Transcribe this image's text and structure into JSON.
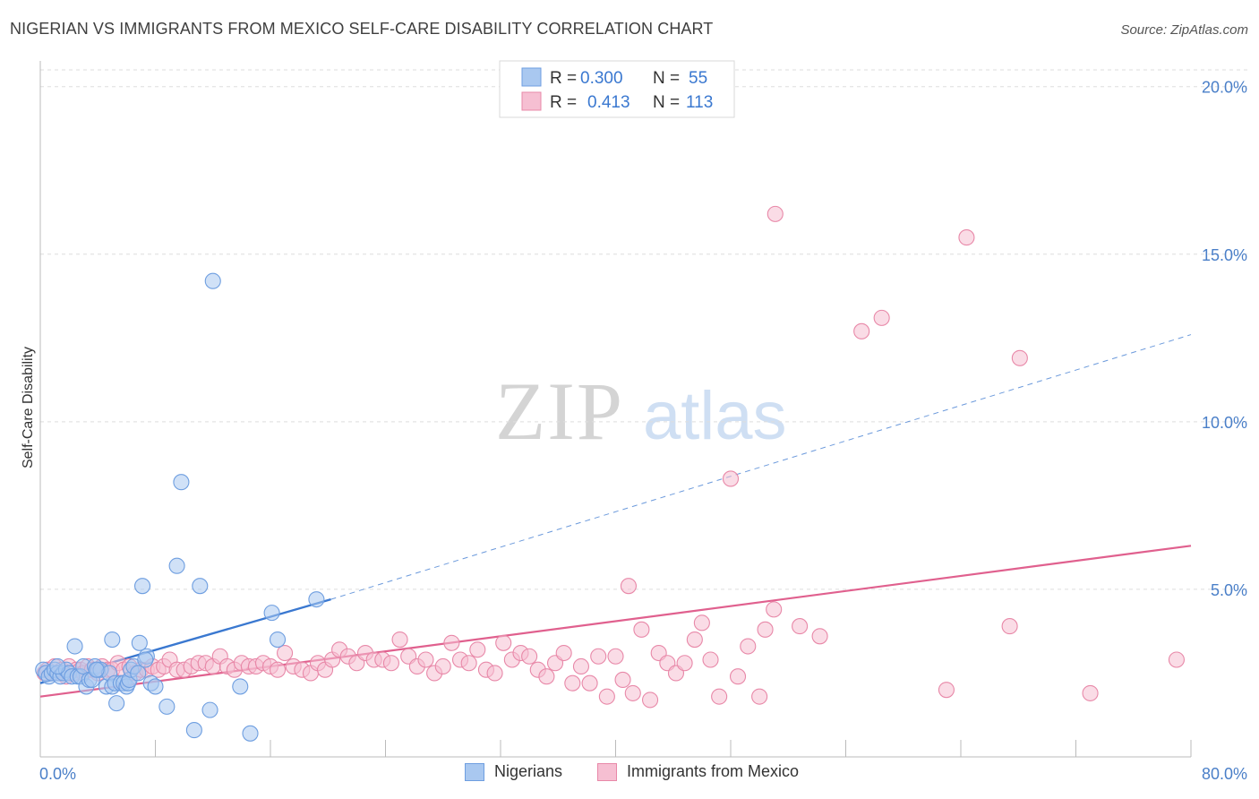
{
  "title": "NIGERIAN VS IMMIGRANTS FROM MEXICO SELF-CARE DISABILITY CORRELATION CHART",
  "source": "Source: ZipAtlas.com",
  "watermark": {
    "zip": "ZIP",
    "atlas": "atlas"
  },
  "colors": {
    "nigerians_fill": "#a9c8f0",
    "nigerians_stroke": "#6e9ee0",
    "nigerians_line": "#3a78d0",
    "mexico_fill": "#f6bfd2",
    "mexico_stroke": "#e888a8",
    "mexico_line": "#e0608e",
    "axis_text": "#4a7fc8",
    "grid": "#dddddd"
  },
  "stats_legend": [
    {
      "r_label": "R =",
      "r_value": "0.300",
      "n_label": "N =",
      "n_value": "55"
    },
    {
      "r_label": "R =",
      "r_value": "0.413",
      "n_label": "N =",
      "n_value": "113"
    }
  ],
  "bottom_legend": [
    {
      "label": "Nigerians"
    },
    {
      "label": "Immigrants from Mexico"
    }
  ],
  "chart_data": {
    "type": "scatter",
    "title": "NIGERIAN VS IMMIGRANTS FROM MEXICO SELF-CARE DISABILITY CORRELATION CHART",
    "xlabel": "",
    "ylabel": "Self-Care Disability",
    "xlim": [
      0,
      80
    ],
    "ylim": [
      0,
      20.5
    ],
    "x_tick_labels": [
      "0.0%",
      "80.0%"
    ],
    "y_ticks": [
      5,
      10,
      15,
      20
    ],
    "y_tick_labels": [
      "5.0%",
      "10.0%",
      "15.0%",
      "20.0%"
    ],
    "grid": true,
    "legend_position": "top-center",
    "series": [
      {
        "name": "Nigerians",
        "r": 0.3,
        "n": 55,
        "trend": {
          "x0": 0,
          "y0": 2.2,
          "x1": 20.2,
          "y1": 4.7,
          "dashed_to_x": 80,
          "dashed_to_y": 12.6
        },
        "points": [
          [
            0.2,
            2.6
          ],
          [
            0.4,
            2.5
          ],
          [
            0.6,
            2.4
          ],
          [
            0.8,
            2.5
          ],
          [
            1.0,
            2.6
          ],
          [
            1.2,
            2.5
          ],
          [
            1.4,
            2.4
          ],
          [
            1.6,
            2.5
          ],
          [
            1.8,
            2.6
          ],
          [
            2.0,
            2.5
          ],
          [
            2.2,
            2.4
          ],
          [
            2.4,
            3.3
          ],
          [
            2.6,
            2.4
          ],
          [
            2.8,
            2.4
          ],
          [
            3.0,
            2.7
          ],
          [
            3.2,
            2.1
          ],
          [
            3.4,
            2.3
          ],
          [
            3.6,
            2.3
          ],
          [
            3.8,
            2.7
          ],
          [
            4.0,
            2.6
          ],
          [
            4.2,
            2.6
          ],
          [
            4.6,
            2.1
          ],
          [
            4.8,
            2.5
          ],
          [
            5.0,
            2.1
          ],
          [
            5.2,
            2.2
          ],
          [
            5.0,
            3.5
          ],
          [
            5.3,
            1.6
          ],
          [
            5.6,
            2.2
          ],
          [
            5.8,
            2.2
          ],
          [
            6.0,
            2.1
          ],
          [
            6.1,
            2.2
          ],
          [
            6.2,
            2.3
          ],
          [
            6.3,
            2.6
          ],
          [
            6.5,
            2.7
          ],
          [
            6.8,
            2.5
          ],
          [
            6.9,
            3.4
          ],
          [
            7.1,
            5.1
          ],
          [
            7.4,
            3.0
          ],
          [
            7.7,
            2.2
          ],
          [
            8.0,
            2.1
          ],
          [
            8.8,
            1.5
          ],
          [
            9.5,
            5.7
          ],
          [
            9.8,
            8.2
          ],
          [
            10.7,
            0.8
          ],
          [
            11.1,
            5.1
          ],
          [
            11.8,
            1.4
          ],
          [
            12.0,
            14.2
          ],
          [
            13.9,
            2.1
          ],
          [
            14.6,
            0.7
          ],
          [
            16.1,
            4.3
          ],
          [
            16.5,
            3.5
          ],
          [
            19.2,
            4.7
          ],
          [
            1.2,
            2.7
          ],
          [
            3.9,
            2.6
          ],
          [
            7.3,
            2.9
          ]
        ]
      },
      {
        "name": "Immigrants from Mexico",
        "r": 0.413,
        "n": 113,
        "trend": {
          "x0": 0,
          "y0": 1.8,
          "x1": 80,
          "y1": 6.3
        },
        "points": [
          [
            0.3,
            2.5
          ],
          [
            0.5,
            2.6
          ],
          [
            0.8,
            2.5
          ],
          [
            1.0,
            2.7
          ],
          [
            1.3,
            2.5
          ],
          [
            1.5,
            2.6
          ],
          [
            1.8,
            2.4
          ],
          [
            2.0,
            2.7
          ],
          [
            2.3,
            2.5
          ],
          [
            2.5,
            2.6
          ],
          [
            2.8,
            2.6
          ],
          [
            3.0,
            2.5
          ],
          [
            3.3,
            2.7
          ],
          [
            3.6,
            2.6
          ],
          [
            4.0,
            2.5
          ],
          [
            4.3,
            2.7
          ],
          [
            4.7,
            2.6
          ],
          [
            5.0,
            2.6
          ],
          [
            5.4,
            2.8
          ],
          [
            5.8,
            2.6
          ],
          [
            6.2,
            2.7
          ],
          [
            6.6,
            2.5
          ],
          [
            7.0,
            2.6
          ],
          [
            7.4,
            2.6
          ],
          [
            7.8,
            2.7
          ],
          [
            8.2,
            2.6
          ],
          [
            8.6,
            2.7
          ],
          [
            9.0,
            2.9
          ],
          [
            9.5,
            2.6
          ],
          [
            10.0,
            2.6
          ],
          [
            10.5,
            2.7
          ],
          [
            11.0,
            2.8
          ],
          [
            11.5,
            2.8
          ],
          [
            12.0,
            2.7
          ],
          [
            12.5,
            3.0
          ],
          [
            13.0,
            2.7
          ],
          [
            13.5,
            2.6
          ],
          [
            14.0,
            2.8
          ],
          [
            14.5,
            2.7
          ],
          [
            15.0,
            2.7
          ],
          [
            15.5,
            2.8
          ],
          [
            16.0,
            2.7
          ],
          [
            16.5,
            2.6
          ],
          [
            17.0,
            3.1
          ],
          [
            17.6,
            2.7
          ],
          [
            18.2,
            2.6
          ],
          [
            18.8,
            2.5
          ],
          [
            19.3,
            2.8
          ],
          [
            19.8,
            2.6
          ],
          [
            20.3,
            2.9
          ],
          [
            20.8,
            3.2
          ],
          [
            21.4,
            3.0
          ],
          [
            22.0,
            2.8
          ],
          [
            22.6,
            3.1
          ],
          [
            23.2,
            2.9
          ],
          [
            23.8,
            2.9
          ],
          [
            24.4,
            2.8
          ],
          [
            25.0,
            3.5
          ],
          [
            25.6,
            3.0
          ],
          [
            26.2,
            2.7
          ],
          [
            26.8,
            2.9
          ],
          [
            27.4,
            2.5
          ],
          [
            28.0,
            2.7
          ],
          [
            28.6,
            3.4
          ],
          [
            29.2,
            2.9
          ],
          [
            29.8,
            2.8
          ],
          [
            30.4,
            3.2
          ],
          [
            31.0,
            2.6
          ],
          [
            31.6,
            2.5
          ],
          [
            32.2,
            3.4
          ],
          [
            32.8,
            2.9
          ],
          [
            33.4,
            3.1
          ],
          [
            34.0,
            3.0
          ],
          [
            34.6,
            2.6
          ],
          [
            35.2,
            2.4
          ],
          [
            35.8,
            2.8
          ],
          [
            36.4,
            3.1
          ],
          [
            37.0,
            2.2
          ],
          [
            37.6,
            2.7
          ],
          [
            38.2,
            2.2
          ],
          [
            38.8,
            3.0
          ],
          [
            39.4,
            1.8
          ],
          [
            40.0,
            3.0
          ],
          [
            40.5,
            2.3
          ],
          [
            41.2,
            1.9
          ],
          [
            41.8,
            3.8
          ],
          [
            42.4,
            1.7
          ],
          [
            43.0,
            3.1
          ],
          [
            43.6,
            2.8
          ],
          [
            44.2,
            2.5
          ],
          [
            44.8,
            2.8
          ],
          [
            45.5,
            3.5
          ],
          [
            46.0,
            4.0
          ],
          [
            46.6,
            2.9
          ],
          [
            47.2,
            1.8
          ],
          [
            48.5,
            2.4
          ],
          [
            49.2,
            3.3
          ],
          [
            50.0,
            1.8
          ],
          [
            50.4,
            3.8
          ],
          [
            51.0,
            4.4
          ],
          [
            52.8,
            3.9
          ],
          [
            54.2,
            3.6
          ],
          [
            40.9,
            5.1
          ],
          [
            57.1,
            12.7
          ],
          [
            58.5,
            13.1
          ],
          [
            63.0,
            2.0
          ],
          [
            67.4,
            3.9
          ],
          [
            68.1,
            11.9
          ],
          [
            73.0,
            1.9
          ],
          [
            79.0,
            2.9
          ],
          [
            51.1,
            16.2
          ],
          [
            64.4,
            15.5
          ],
          [
            48.0,
            8.3
          ]
        ]
      }
    ]
  }
}
